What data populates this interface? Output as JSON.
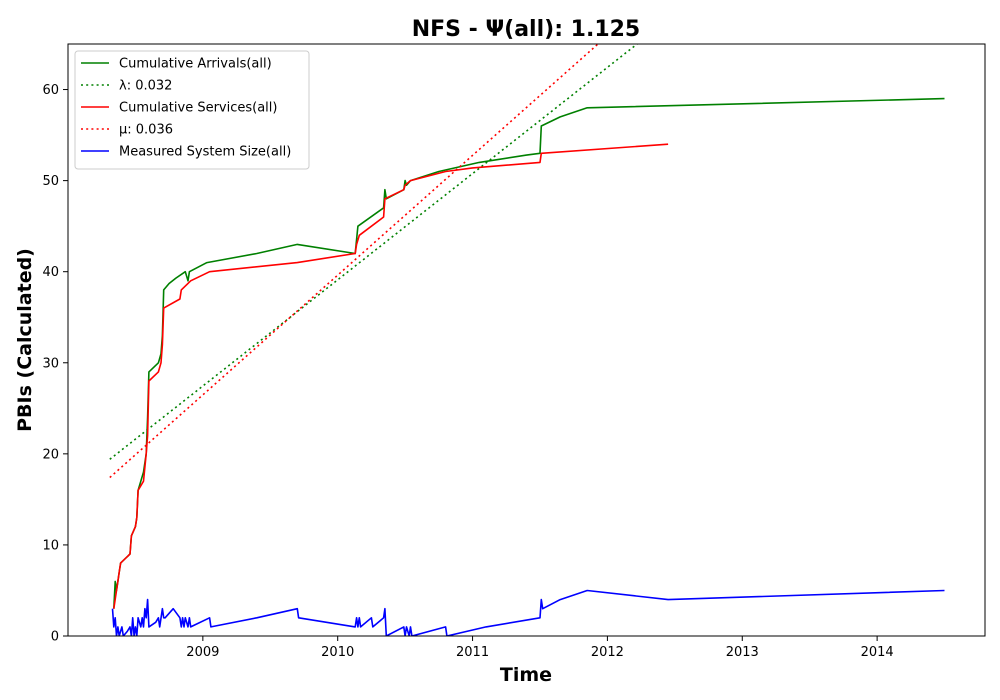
{
  "chart_data": {
    "type": "line",
    "title": "NFS -  Ψ(all): 1.125",
    "xlabel": "Time",
    "ylabel": "PBIs (Calculated)",
    "xlim": [
      2008.0,
      2014.8
    ],
    "ylim": [
      0,
      65
    ],
    "xticks": [
      2009,
      2010,
      2011,
      2012,
      2013,
      2014
    ],
    "yticks": [
      0,
      10,
      20,
      30,
      40,
      50,
      60
    ],
    "grid": false,
    "legend_position": "top-left",
    "series": [
      {
        "name": "Cumulative Arrivals(all)",
        "color": "#008000",
        "style": "solid",
        "points": [
          [
            2008.34,
            3
          ],
          [
            2008.35,
            6
          ],
          [
            2008.36,
            5
          ],
          [
            2008.37,
            6
          ],
          [
            2008.38,
            7
          ],
          [
            2008.39,
            8
          ],
          [
            2008.46,
            9
          ],
          [
            2008.47,
            11
          ],
          [
            2008.5,
            12
          ],
          [
            2008.51,
            13
          ],
          [
            2008.52,
            16
          ],
          [
            2008.56,
            18
          ],
          [
            2008.58,
            20
          ],
          [
            2008.59,
            24
          ],
          [
            2008.6,
            29
          ],
          [
            2008.67,
            30
          ],
          [
            2008.69,
            31
          ],
          [
            2008.7,
            33
          ],
          [
            2008.71,
            38
          ],
          [
            2008.75,
            38.7
          ],
          [
            2008.8,
            39.3
          ],
          [
            2008.87,
            40
          ],
          [
            2008.89,
            39
          ],
          [
            2008.9,
            40
          ],
          [
            2009.03,
            41
          ],
          [
            2009.4,
            42
          ],
          [
            2009.7,
            43
          ],
          [
            2010.13,
            42
          ],
          [
            2010.15,
            45
          ],
          [
            2010.34,
            47
          ],
          [
            2010.35,
            49
          ],
          [
            2010.36,
            48
          ],
          [
            2010.49,
            49
          ],
          [
            2010.5,
            50
          ],
          [
            2010.51,
            49.5
          ],
          [
            2010.54,
            50
          ],
          [
            2010.75,
            51
          ],
          [
            2011.05,
            52
          ],
          [
            2011.4,
            52.8
          ],
          [
            2011.5,
            53
          ],
          [
            2011.51,
            56
          ],
          [
            2011.65,
            57
          ],
          [
            2011.85,
            58
          ],
          [
            2014.5,
            59
          ]
        ]
      },
      {
        "name": "λ: 0.032",
        "color": "#008000",
        "style": "dotted",
        "points": [
          [
            2008.31,
            19.4
          ],
          [
            2012.22,
            65
          ]
        ]
      },
      {
        "name": "Cumulative Services(all)",
        "color": "#ff0000",
        "style": "solid",
        "points": [
          [
            2008.34,
            3
          ],
          [
            2008.36,
            5
          ],
          [
            2008.38,
            7
          ],
          [
            2008.39,
            8
          ],
          [
            2008.46,
            9
          ],
          [
            2008.47,
            11
          ],
          [
            2008.5,
            12
          ],
          [
            2008.51,
            13
          ],
          [
            2008.52,
            16
          ],
          [
            2008.56,
            17
          ],
          [
            2008.58,
            20
          ],
          [
            2008.59,
            22
          ],
          [
            2008.6,
            28
          ],
          [
            2008.67,
            29
          ],
          [
            2008.69,
            30
          ],
          [
            2008.7,
            32
          ],
          [
            2008.71,
            36
          ],
          [
            2008.83,
            37
          ],
          [
            2008.84,
            38
          ],
          [
            2008.91,
            39
          ],
          [
            2009.05,
            40
          ],
          [
            2009.7,
            41
          ],
          [
            2010.13,
            42
          ],
          [
            2010.14,
            43
          ],
          [
            2010.16,
            44
          ],
          [
            2010.34,
            46
          ],
          [
            2010.35,
            48
          ],
          [
            2010.49,
            49
          ],
          [
            2010.5,
            49.5
          ],
          [
            2010.54,
            50
          ],
          [
            2010.8,
            51
          ],
          [
            2011.0,
            51.4
          ],
          [
            2011.5,
            52
          ],
          [
            2011.51,
            53
          ],
          [
            2012.45,
            54
          ]
        ]
      },
      {
        "name": "μ: 0.036",
        "color": "#ff0000",
        "style": "dotted",
        "points": [
          [
            2008.31,
            17.4
          ],
          [
            2011.93,
            65
          ]
        ]
      },
      {
        "name": "Measured System Size(all)",
        "color": "#0000ff",
        "style": "solid",
        "points": [
          [
            2008.33,
            3
          ],
          [
            2008.34,
            1
          ],
          [
            2008.35,
            2
          ],
          [
            2008.36,
            0
          ],
          [
            2008.37,
            1
          ],
          [
            2008.38,
            0
          ],
          [
            2008.4,
            1
          ],
          [
            2008.41,
            0
          ],
          [
            2008.44,
            0.5
          ],
          [
            2008.46,
            1
          ],
          [
            2008.47,
            0
          ],
          [
            2008.48,
            2
          ],
          [
            2008.49,
            0
          ],
          [
            2008.5,
            1
          ],
          [
            2008.51,
            0
          ],
          [
            2008.52,
            2
          ],
          [
            2008.54,
            1
          ],
          [
            2008.55,
            2
          ],
          [
            2008.56,
            1
          ],
          [
            2008.57,
            3
          ],
          [
            2008.58,
            2
          ],
          [
            2008.59,
            4
          ],
          [
            2008.6,
            1
          ],
          [
            2008.65,
            1.5
          ],
          [
            2008.67,
            2
          ],
          [
            2008.68,
            1
          ],
          [
            2008.7,
            3
          ],
          [
            2008.71,
            2
          ],
          [
            2008.72,
            2
          ],
          [
            2008.78,
            3
          ],
          [
            2008.83,
            2
          ],
          [
            2008.84,
            1
          ],
          [
            2008.85,
            2
          ],
          [
            2008.86,
            1
          ],
          [
            2008.87,
            2
          ],
          [
            2008.89,
            1
          ],
          [
            2008.9,
            2
          ],
          [
            2008.91,
            1
          ],
          [
            2009.05,
            2
          ],
          [
            2009.06,
            1
          ],
          [
            2009.4,
            2
          ],
          [
            2009.7,
            3
          ],
          [
            2009.71,
            2
          ],
          [
            2010.13,
            1
          ],
          [
            2010.14,
            2
          ],
          [
            2010.15,
            1
          ],
          [
            2010.16,
            2
          ],
          [
            2010.17,
            1
          ],
          [
            2010.25,
            2
          ],
          [
            2010.26,
            1
          ],
          [
            2010.34,
            2
          ],
          [
            2010.35,
            3
          ],
          [
            2010.36,
            0
          ],
          [
            2010.49,
            1
          ],
          [
            2010.5,
            0
          ],
          [
            2010.51,
            1
          ],
          [
            2010.53,
            0
          ],
          [
            2010.54,
            1
          ],
          [
            2010.55,
            0
          ],
          [
            2010.8,
            1
          ],
          [
            2010.81,
            0
          ],
          [
            2011.1,
            1
          ],
          [
            2011.5,
            2
          ],
          [
            2011.51,
            4
          ],
          [
            2011.52,
            3
          ],
          [
            2011.65,
            4
          ],
          [
            2011.85,
            5
          ],
          [
            2012.45,
            4
          ],
          [
            2014.5,
            5
          ]
        ]
      }
    ]
  }
}
